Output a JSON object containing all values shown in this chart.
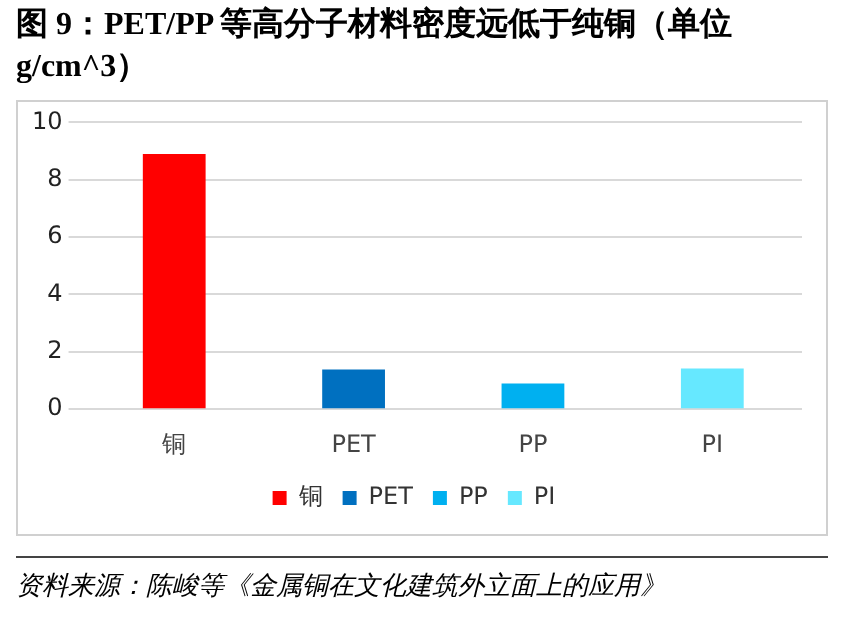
{
  "chart_data": {
    "type": "bar",
    "title": "图 9：PET/PP 等高分子材料密度远低于纯铜（单位 g/cm^3）",
    "categories": [
      "铜",
      "PET",
      "PP",
      "PI"
    ],
    "series": [
      {
        "name": "铜",
        "color": "#ff0000",
        "values": [
          8.9,
          null,
          null,
          null
        ]
      },
      {
        "name": "PET",
        "color": "#0070c0",
        "values": [
          null,
          1.38,
          null,
          null
        ]
      },
      {
        "name": "PP",
        "color": "#00b0f0",
        "values": [
          null,
          null,
          0.9,
          null
        ]
      },
      {
        "name": "PI",
        "color": "#66e8ff",
        "values": [
          null,
          null,
          null,
          1.42
        ]
      }
    ],
    "ylim": [
      0,
      10
    ],
    "yticks": [
      0,
      2,
      4,
      6,
      8,
      10
    ],
    "grid": "y",
    "legend": "bottom",
    "annotations": [
      "资料来源：陈峻等《金属铜在文化建筑外立面上的应用》"
    ]
  }
}
